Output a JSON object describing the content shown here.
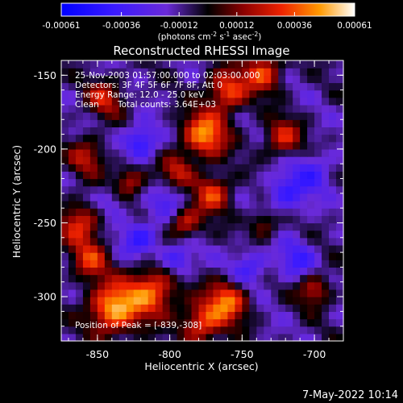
{
  "chart_data": {
    "type": "heatmap",
    "title": "Reconstructed RHESSI Image",
    "xlabel": "Heliocentric X (arcsec)",
    "ylabel": "Heliocentric Y (arcsec)",
    "xlim": [
      -875,
      -680
    ],
    "ylim": [
      -330,
      -140
    ],
    "x_ticks": [
      "-850",
      "-800",
      "-750",
      "-700"
    ],
    "x_tick_values": [
      -850,
      -800,
      -750,
      -700
    ],
    "y_ticks": [
      "-150",
      "-200",
      "-250",
      "-300"
    ],
    "y_tick_values": [
      -150,
      -200,
      -250,
      -300
    ],
    "colorbar": {
      "ticks": [
        "-0.00061",
        "-0.00036",
        "-0.00012",
        "0.00012",
        "0.00036",
        "0.00061"
      ],
      "tick_values": [
        -0.00061,
        -0.00036,
        -0.00012,
        0.00012,
        0.00036,
        0.00061
      ],
      "unit_main": "(photons cm",
      "unit_sup1": "-2",
      "unit_mid1": " s",
      "unit_sup2": "-1",
      "unit_mid2": " asec",
      "unit_sup3": "-2",
      "unit_end": ")",
      "range": [
        -0.00061,
        0.00061
      ]
    },
    "annotations": {
      "line1": "25-Nov-2003 01:57:00.000 to 02:03:00.000",
      "line2": "Detectors: 3F 4F 5F 6F 7F 8F, Att 0",
      "line3": "Energy Range: 12.0 - 25.0 keV",
      "line4a": "Clean",
      "line4b": "Total counts: 3.64E+03",
      "peak": "Position of Peak = [-839,-308]"
    },
    "peak_position": [
      -839,
      -308
    ],
    "footer_date": "7-May-2022 10:14",
    "blobs": [
      {
        "x": -839,
        "y": -308,
        "amp": 1.0,
        "r": 12
      },
      {
        "x": -812,
        "y": -296,
        "amp": 0.8,
        "r": 12
      },
      {
        "x": -760,
        "y": -303,
        "amp": 0.8,
        "r": 10
      },
      {
        "x": -778,
        "y": -318,
        "amp": 0.7,
        "r": 10
      },
      {
        "x": -862,
        "y": -250,
        "amp": 0.65,
        "r": 10
      },
      {
        "x": -857,
        "y": -205,
        "amp": 0.5,
        "r": 9
      },
      {
        "x": -776,
        "y": -190,
        "amp": 0.9,
        "r": 11
      },
      {
        "x": -760,
        "y": -160,
        "amp": 0.75,
        "r": 10
      },
      {
        "x": -735,
        "y": -148,
        "amp": 0.7,
        "r": 9
      },
      {
        "x": -722,
        "y": -192,
        "amp": 0.6,
        "r": 9
      },
      {
        "x": -770,
        "y": -230,
        "amp": 0.7,
        "r": 9
      },
      {
        "x": -790,
        "y": -250,
        "amp": 0.6,
        "r": 8
      },
      {
        "x": -828,
        "y": -222,
        "amp": 0.55,
        "r": 8
      },
      {
        "x": -795,
        "y": -215,
        "amp": 0.5,
        "r": 8
      },
      {
        "x": -845,
        "y": -165,
        "amp": 0.55,
        "r": 9
      },
      {
        "x": -700,
        "y": -295,
        "amp": 0.55,
        "r": 8
      },
      {
        "x": -735,
        "y": -250,
        "amp": 0.45,
        "r": 7
      },
      {
        "x": -855,
        "y": -275,
        "amp": 0.6,
        "r": 9
      },
      {
        "x": -820,
        "y": -195,
        "amp": -0.6,
        "r": 8
      },
      {
        "x": -820,
        "y": -260,
        "amp": -0.5,
        "r": 9
      },
      {
        "x": -795,
        "y": -275,
        "amp": -0.5,
        "r": 8
      },
      {
        "x": -720,
        "y": -230,
        "amp": -0.45,
        "r": 10
      },
      {
        "x": -700,
        "y": -215,
        "amp": -0.35,
        "r": 10
      },
      {
        "x": -712,
        "y": -275,
        "amp": -0.4,
        "r": 9
      },
      {
        "x": -745,
        "y": -280,
        "amp": -0.4,
        "r": 9
      },
      {
        "x": -800,
        "y": -235,
        "amp": -0.35,
        "r": 8
      },
      {
        "x": -840,
        "y": -235,
        "amp": -0.3,
        "r": 8
      }
    ]
  }
}
